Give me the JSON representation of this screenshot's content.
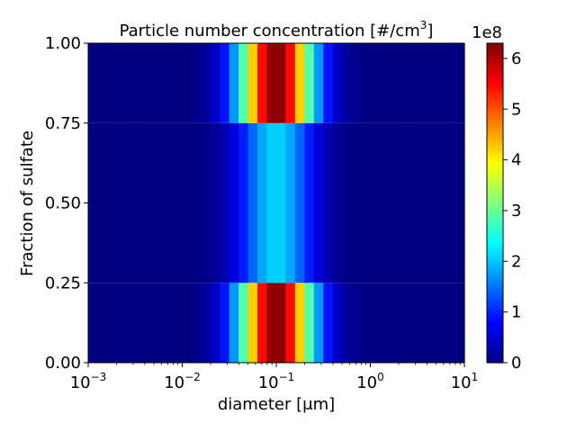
{
  "chart_data": {
    "type": "heatmap",
    "title_main": "Particle number concentration [#/cm",
    "title_sup": "3",
    "title_end": "]",
    "xlabel": "diameter [μm]",
    "ylabel": "Fraction of sulfate",
    "x_scale": "log",
    "xlim": [
      0.001,
      10
    ],
    "ylim": [
      0,
      1
    ],
    "x_ticks": [
      {
        "value": 0.001,
        "base": "10",
        "exp": "−3"
      },
      {
        "value": 0.01,
        "base": "10",
        "exp": "−2"
      },
      {
        "value": 0.1,
        "base": "10",
        "exp": "−1"
      },
      {
        "value": 1,
        "base": "10",
        "exp": "0"
      },
      {
        "value": 10,
        "base": "10",
        "exp": "1"
      }
    ],
    "y_ticks": [
      "0.00",
      "0.25",
      "0.50",
      "0.75",
      "1.00"
    ],
    "y_tick_values": [
      0,
      0.25,
      0.5,
      0.75,
      1.0
    ],
    "colormap": "jet",
    "colorbar": {
      "label_offset": "1e8",
      "ticks": [
        "0",
        "1",
        "2",
        "3",
        "4",
        "5",
        "6"
      ],
      "tick_values": [
        0,
        1,
        2,
        3,
        4,
        5,
        6
      ],
      "vmin": 0,
      "vmax": 6.3
    },
    "rows": [
      {
        "y0": 0.0,
        "y1": 0.25,
        "peak_value": 6.3,
        "median_diameter": 0.1,
        "sigma_log10": 0.28
      },
      {
        "y0": 0.25,
        "y1": 0.75,
        "peak_value": 2.1,
        "median_diameter": 0.1,
        "sigma_log10": 0.28
      },
      {
        "y0": 0.75,
        "y1": 1.0,
        "peak_value": 6.3,
        "median_diameter": 0.1,
        "sigma_log10": 0.28
      }
    ],
    "x_bins": 40,
    "grid": false,
    "legend": "none"
  }
}
